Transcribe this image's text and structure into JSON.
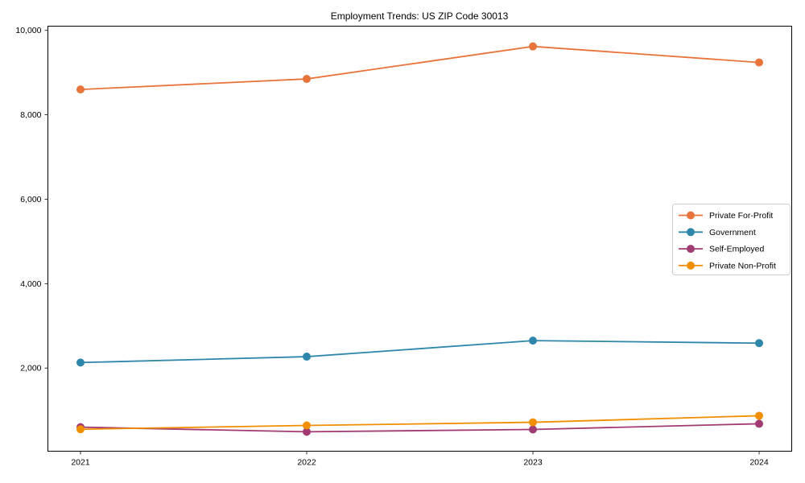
{
  "figure": {
    "background": "#ffffff",
    "axis_color": "#000000",
    "text_color": "#000000",
    "legend_border_color": "#cccccc"
  },
  "chart_data": {
    "type": "line",
    "title": "Employment Trends: US ZIP Code 30013",
    "xlabel": "",
    "ylabel": "",
    "categories": [
      "2021",
      "2022",
      "2023",
      "2024"
    ],
    "series": [
      {
        "name": "Private For-Profit",
        "color": "#E8743B",
        "values": [
          8600,
          8850,
          9620,
          9240
        ]
      },
      {
        "name": "Government",
        "color": "#2E86AB",
        "values": [
          2130,
          2270,
          2650,
          2590
        ]
      },
      {
        "name": "Self-Employed",
        "color": "#A23B72",
        "values": [
          600,
          490,
          545,
          680
        ]
      },
      {
        "name": "Private Non-Profit",
        "color": "#F18F01",
        "values": [
          550,
          640,
          715,
          870
        ]
      }
    ],
    "ylim": [
      30,
      10100
    ],
    "yticks": {
      "values": [
        2000,
        4000,
        6000,
        8000,
        10000
      ],
      "labels": [
        "2,000",
        "4,000",
        "6,000",
        "8,000",
        "10,000"
      ]
    },
    "grid": false,
    "marker": "circle",
    "legend": {
      "position": "center right",
      "entries": [
        "Private For-Profit",
        "Government",
        "Self-Employed",
        "Private Non-Profit"
      ]
    }
  }
}
